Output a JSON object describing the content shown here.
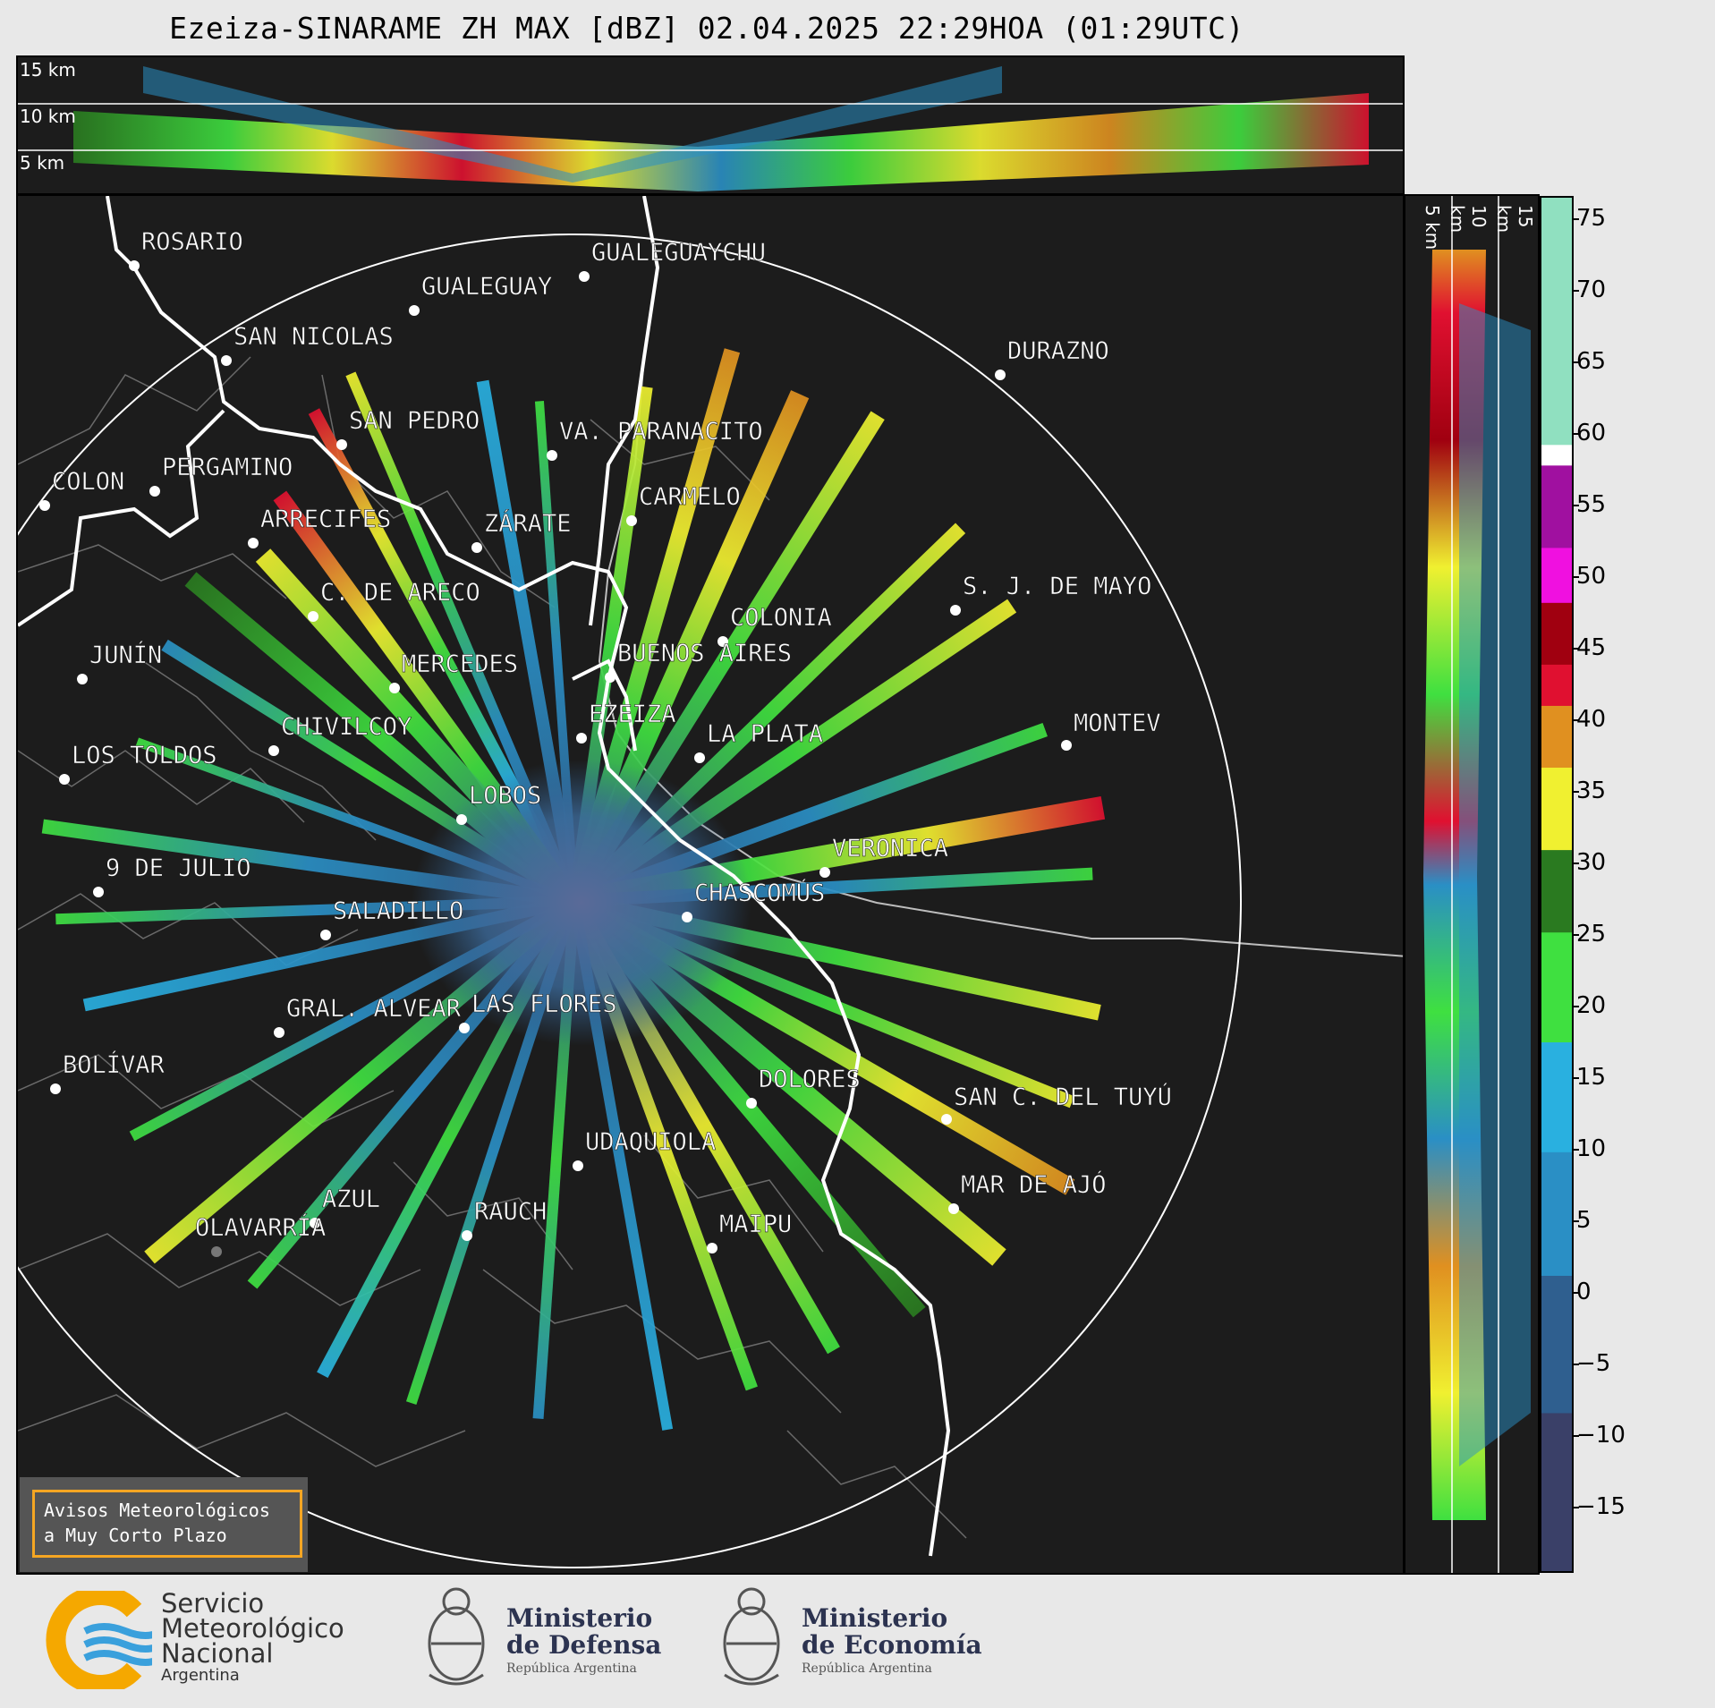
{
  "title": "Ezeiza-SINARAME ZH MAX [dBZ] 02.04.2025 22:29HOA (01:29UTC)",
  "height_labels_top": [
    "15 km",
    "10 km",
    "5 km"
  ],
  "height_labels_side": [
    "5 km",
    "10 km",
    "15 km"
  ],
  "colorbar": {
    "ticks": [
      "75",
      "70",
      "65",
      "60",
      "55",
      "50",
      "45",
      "40",
      "35",
      "30",
      "25",
      "20",
      "15",
      "10",
      "5",
      "0",
      "−5",
      "−10",
      "−15"
    ],
    "colors": {
      "low": "#3a4068",
      "blue_low": "#2f5f8f",
      "blue": "#2a8fc5",
      "cyan": "#29b0e0",
      "green": "#3fe040",
      "dark_green": "#2a7a20",
      "yellow": "#f0f030",
      "orange": "#e09020",
      "red": "#e01030",
      "dark_red": "#a00010",
      "magenta": "#f010e0",
      "purple": "#a010a0",
      "white": "#ffffff",
      "pale_green": "#90e0c0"
    }
  },
  "cities": [
    {
      "name": "ROSARIO"
    },
    {
      "name": "GUALEGUAYCHU"
    },
    {
      "name": "GUALEGUAY"
    },
    {
      "name": "SAN NICOLAS"
    },
    {
      "name": "DURAZNO"
    },
    {
      "name": "SAN PEDRO"
    },
    {
      "name": "VA. PARANACITO"
    },
    {
      "name": "COLON"
    },
    {
      "name": "PERGAMINO"
    },
    {
      "name": "CARMELO"
    },
    {
      "name": "ARRECIFES"
    },
    {
      "name": "ZÁRATE"
    },
    {
      "name": "S. J. DE MAYO"
    },
    {
      "name": "C. DE ARECO"
    },
    {
      "name": "COLONIA"
    },
    {
      "name": "JUNÍN"
    },
    {
      "name": "BUENOS AIRES"
    },
    {
      "name": "MERCEDES"
    },
    {
      "name": "EZEIZA"
    },
    {
      "name": "MONTEV"
    },
    {
      "name": "CHIVILCOY"
    },
    {
      "name": "LA PLATA"
    },
    {
      "name": "LOS TOLDOS"
    },
    {
      "name": "LOBOS"
    },
    {
      "name": "VERONICA"
    },
    {
      "name": "9 DE JULIO"
    },
    {
      "name": "CHASCOMÚS"
    },
    {
      "name": "SALADILLO"
    },
    {
      "name": "GRAL. ALVEAR"
    },
    {
      "name": "LAS FLORES"
    },
    {
      "name": "BOLÍVAR"
    },
    {
      "name": "DOLORES"
    },
    {
      "name": "SAN C. DEL TUYÚ"
    },
    {
      "name": "UDAQUIOLA"
    },
    {
      "name": "MAR DE AJÓ"
    },
    {
      "name": "AZUL"
    },
    {
      "name": "RAUCH"
    },
    {
      "name": "MAIPU"
    },
    {
      "name": "OLAVARRÍA"
    }
  ],
  "warning_box": {
    "line1": "Avisos Meteorológicos",
    "line2": "a Muy Corto Plazo"
  },
  "footer": {
    "smn": {
      "line1": "Servicio",
      "line2": "Meteorológico",
      "line3": "Nacional",
      "line4": "Argentina"
    },
    "defensa": {
      "line1": "Ministerio",
      "line2": "de Defensa",
      "line3": "República Argentina"
    },
    "economia": {
      "line1": "Ministerio",
      "line2": "de Economía",
      "line3": "República Argentina"
    }
  }
}
